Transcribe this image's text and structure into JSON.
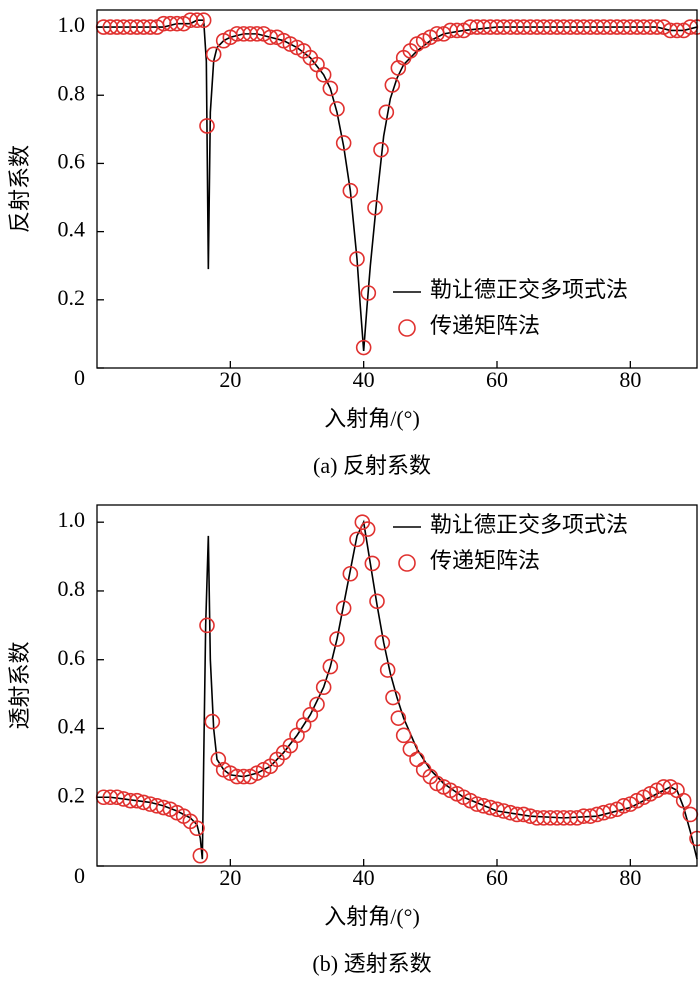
{
  "chart_data": [
    {
      "type": "line",
      "title": "(a) 反射系数",
      "ylabel": "反射系数",
      "xlabel": "入射角/(°)",
      "xlim": [
        0,
        90
      ],
      "ylim": [
        0,
        1.05
      ],
      "xticks": [
        20,
        40,
        60,
        80
      ],
      "yticks": [
        0,
        0.2,
        0.4,
        0.6,
        0.8,
        {
          "value": 1,
          "label": "1.0"
        }
      ],
      "legend": "lower right",
      "series": [
        {
          "name": "勒让德正交多项式法",
          "color": "#000000",
          "style": "line",
          "x": [
            0,
            2,
            4,
            6,
            8,
            10,
            12,
            14,
            15,
            16,
            16.4,
            16.7,
            17,
            17.5,
            18,
            19,
            20,
            22,
            24,
            26,
            28,
            30,
            32,
            34,
            35,
            36,
            37,
            38,
            39,
            39.5,
            40,
            40.5,
            41,
            42,
            43,
            44,
            45,
            46,
            48,
            50,
            52,
            55,
            60,
            65,
            70,
            75,
            80,
            84,
            86,
            88,
            90
          ],
          "values": [
            1.0,
            1.0,
            1.0,
            1.0,
            1.0,
            1.0,
            1.01,
            1.01,
            1.02,
            1.02,
            0.9,
            0.29,
            0.75,
            0.9,
            0.94,
            0.96,
            0.97,
            0.98,
            0.98,
            0.97,
            0.96,
            0.94,
            0.91,
            0.86,
            0.82,
            0.75,
            0.65,
            0.52,
            0.32,
            0.18,
            0.05,
            0.18,
            0.3,
            0.5,
            0.68,
            0.79,
            0.85,
            0.89,
            0.93,
            0.96,
            0.98,
            0.99,
            1.0,
            1.0,
            1.0,
            1.0,
            1.0,
            1.0,
            0.99,
            0.99,
            1.0
          ]
        },
        {
          "name": "传递矩阵法",
          "color": "#e0312f",
          "style": "circle",
          "x": [
            1,
            2,
            3,
            4,
            5,
            6,
            7,
            8,
            9,
            10,
            11,
            12,
            13,
            14,
            15,
            16,
            16.5,
            17.5,
            19,
            20,
            21,
            22,
            23,
            24,
            25,
            26,
            27,
            28,
            29,
            30,
            31,
            32,
            33,
            34,
            35,
            36,
            37,
            38,
            39,
            40,
            40.7,
            41.7,
            42.6,
            43.4,
            44.3,
            45.2,
            46,
            47,
            48,
            49,
            50,
            51,
            52,
            53,
            54,
            55,
            56,
            57,
            58,
            59,
            60,
            61,
            62,
            63,
            64,
            65,
            66,
            67,
            68,
            69,
            70,
            71,
            72,
            73,
            74,
            75,
            76,
            77,
            78,
            79,
            80,
            81,
            82,
            83,
            84,
            85,
            86,
            87,
            88,
            89,
            90
          ],
          "values": [
            1.0,
            1.0,
            1.0,
            1.0,
            1.0,
            1.0,
            1.0,
            1.0,
            1.0,
            1.01,
            1.01,
            1.01,
            1.01,
            1.02,
            1.02,
            1.02,
            0.71,
            0.92,
            0.96,
            0.97,
            0.98,
            0.98,
            0.98,
            0.98,
            0.98,
            0.97,
            0.97,
            0.96,
            0.95,
            0.94,
            0.93,
            0.91,
            0.89,
            0.86,
            0.82,
            0.76,
            0.66,
            0.52,
            0.32,
            0.06,
            0.22,
            0.47,
            0.64,
            0.75,
            0.83,
            0.88,
            0.91,
            0.93,
            0.95,
            0.96,
            0.97,
            0.98,
            0.98,
            0.99,
            0.99,
            0.99,
            1.0,
            1.0,
            1.0,
            1.0,
            1.0,
            1.0,
            1.0,
            1.0,
            1.0,
            1.0,
            1.0,
            1.0,
            1.0,
            1.0,
            1.0,
            1.0,
            1.0,
            1.0,
            1.0,
            1.0,
            1.0,
            1.0,
            1.0,
            1.0,
            1.0,
            1.0,
            1.0,
            1.0,
            1.0,
            1.0,
            0.99,
            0.99,
            0.99,
            1.0,
            1.0
          ]
        }
      ]
    },
    {
      "type": "line",
      "title": "(b) 透射系数",
      "ylabel": "透射系数",
      "xlabel": "入射角/(°)",
      "xlim": [
        0,
        90
      ],
      "ylim": [
        0,
        1.05
      ],
      "xticks": [
        20,
        40,
        60,
        80
      ],
      "yticks": [
        0,
        0.2,
        0.4,
        0.6,
        0.8,
        {
          "value": 1,
          "label": "1.0"
        }
      ],
      "legend": "upper right",
      "series": [
        {
          "name": "勒让德正交多项式法",
          "color": "#000000",
          "style": "line",
          "x": [
            0,
            2,
            4,
            6,
            8,
            10,
            12,
            14,
            15,
            15.5,
            15.8,
            16,
            16.3,
            16.7,
            17,
            17.5,
            18,
            19,
            20,
            22,
            24,
            26,
            28,
            30,
            32,
            34,
            35,
            36,
            37,
            38,
            39,
            40,
            41,
            42,
            43,
            44,
            45,
            46,
            48,
            50,
            52,
            55,
            60,
            65,
            70,
            75,
            80,
            83,
            85,
            86,
            87,
            88,
            89,
            90
          ],
          "values": [
            0.2,
            0.2,
            0.195,
            0.19,
            0.185,
            0.175,
            0.16,
            0.14,
            0.12,
            0.08,
            0.02,
            0.3,
            0.7,
            0.96,
            0.6,
            0.4,
            0.31,
            0.28,
            0.265,
            0.26,
            0.27,
            0.29,
            0.33,
            0.38,
            0.44,
            0.52,
            0.58,
            0.66,
            0.76,
            0.86,
            0.96,
            1.0,
            0.88,
            0.76,
            0.65,
            0.56,
            0.49,
            0.43,
            0.34,
            0.28,
            0.24,
            0.2,
            0.16,
            0.145,
            0.14,
            0.145,
            0.17,
            0.2,
            0.22,
            0.23,
            0.22,
            0.17,
            0.1,
            0.02
          ]
        },
        {
          "name": "传递矩阵法",
          "color": "#e0312f",
          "style": "circle",
          "x": [
            1,
            2,
            3,
            4,
            5,
            6,
            7,
            8,
            9,
            10,
            11,
            12,
            13,
            14,
            15,
            15.5,
            16.5,
            17.3,
            18.2,
            19,
            20,
            21,
            22,
            23,
            24,
            25,
            26,
            27,
            28,
            29,
            30,
            31,
            32,
            33,
            34,
            35,
            36,
            37,
            38,
            39,
            39.8,
            40.6,
            41.3,
            42,
            42.8,
            43.6,
            44.4,
            45.2,
            46,
            47,
            48,
            49,
            50,
            51,
            52,
            53,
            54,
            55,
            56,
            57,
            58,
            59,
            60,
            61,
            62,
            63,
            64,
            65,
            66,
            67,
            68,
            69,
            70,
            71,
            72,
            73,
            74,
            75,
            76,
            77,
            78,
            79,
            80,
            81,
            82,
            83,
            84,
            85,
            86,
            87,
            88,
            89,
            90
          ],
          "values": [
            0.2,
            0.2,
            0.2,
            0.195,
            0.19,
            0.19,
            0.185,
            0.18,
            0.175,
            0.17,
            0.165,
            0.155,
            0.145,
            0.13,
            0.11,
            0.03,
            0.7,
            0.42,
            0.31,
            0.28,
            0.27,
            0.26,
            0.26,
            0.26,
            0.27,
            0.28,
            0.29,
            0.31,
            0.33,
            0.35,
            0.38,
            0.41,
            0.44,
            0.47,
            0.52,
            0.58,
            0.66,
            0.75,
            0.85,
            0.95,
            1.0,
            0.98,
            0.88,
            0.77,
            0.65,
            0.57,
            0.49,
            0.43,
            0.38,
            0.34,
            0.31,
            0.28,
            0.26,
            0.24,
            0.23,
            0.22,
            0.21,
            0.2,
            0.19,
            0.18,
            0.175,
            0.17,
            0.165,
            0.16,
            0.155,
            0.15,
            0.15,
            0.145,
            0.14,
            0.14,
            0.14,
            0.14,
            0.14,
            0.14,
            0.14,
            0.145,
            0.145,
            0.15,
            0.155,
            0.16,
            0.165,
            0.175,
            0.18,
            0.19,
            0.2,
            0.21,
            0.22,
            0.23,
            0.23,
            0.22,
            0.19,
            0.15,
            0.08
          ]
        }
      ]
    }
  ]
}
